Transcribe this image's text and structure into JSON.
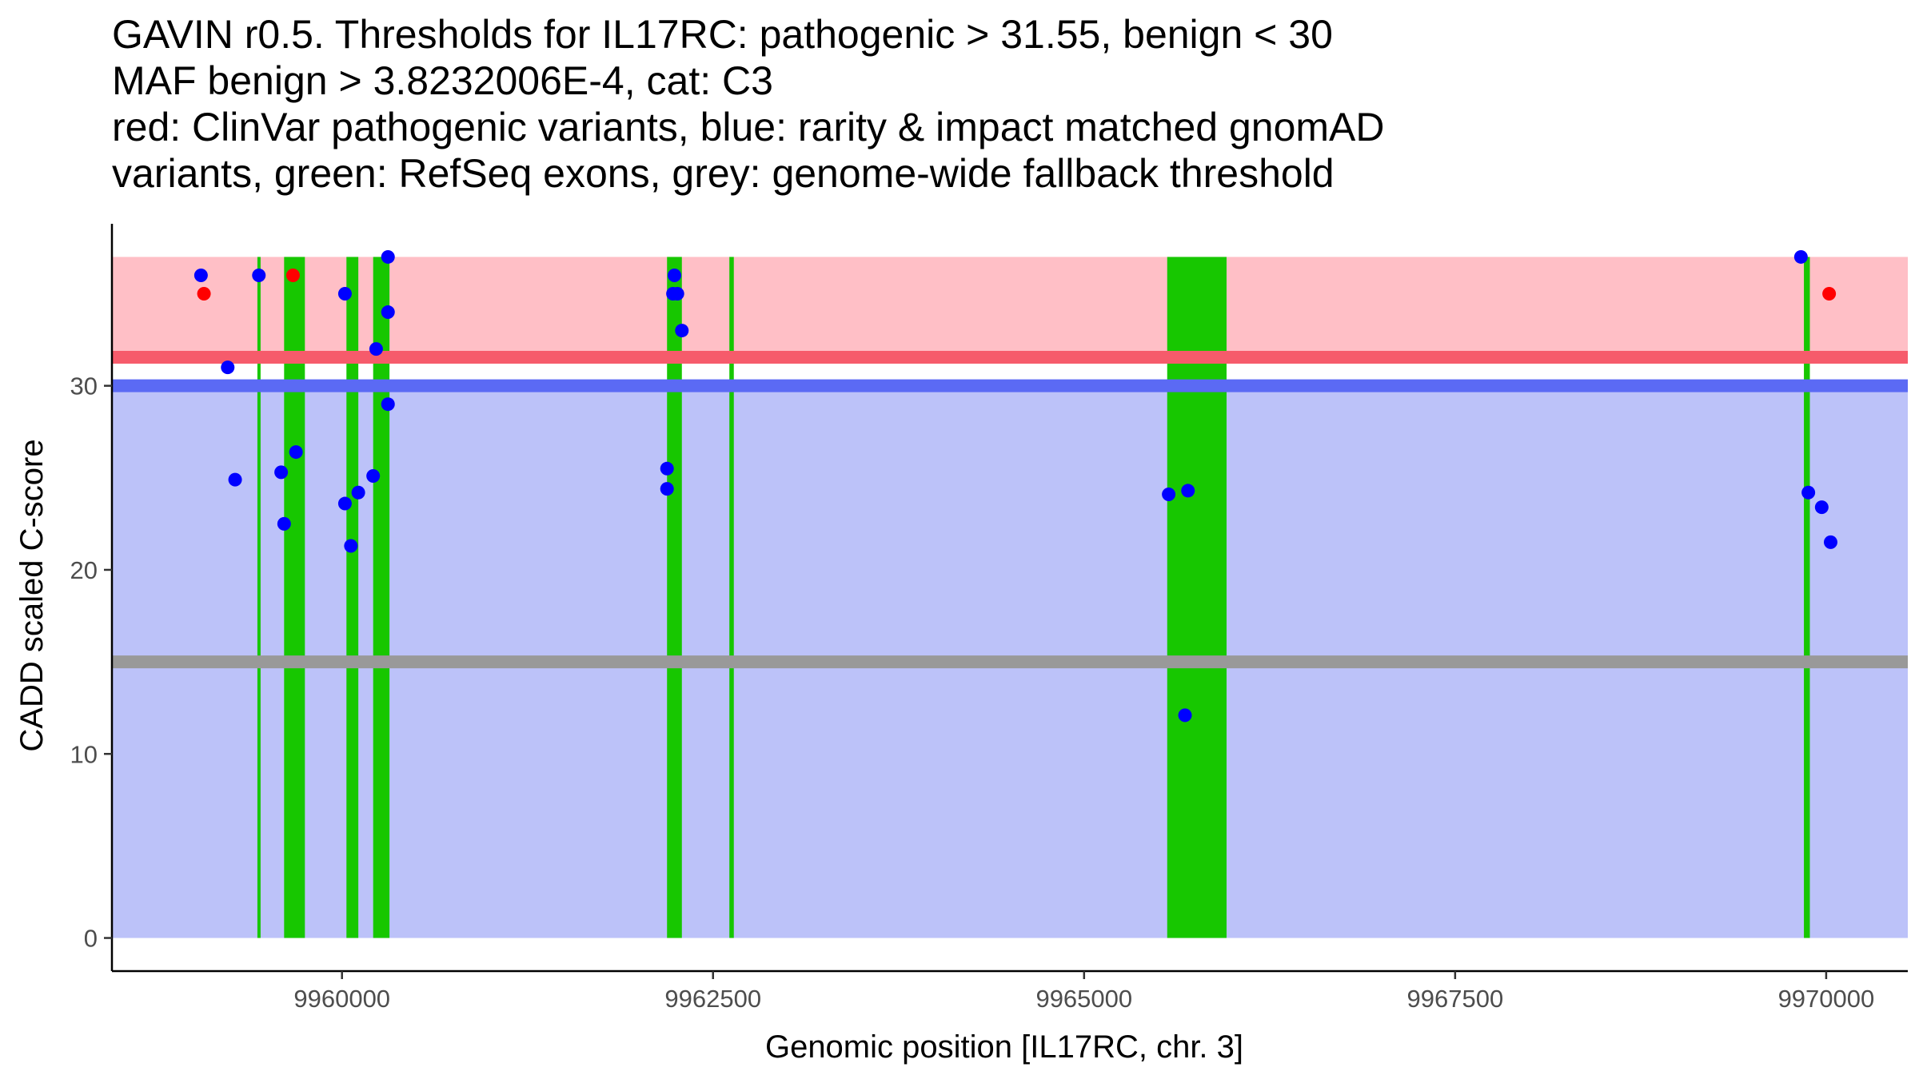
{
  "chart_data": {
    "type": "scatter",
    "title_lines": [
      "GAVIN r0.5. Thresholds for IL17RC: pathogenic > 31.55, benign < 30",
      "MAF benign > 3.8232006E-4, cat: C3",
      "red: ClinVar pathogenic variants, blue: rarity & impact matched gnomAD",
      "variants, green: RefSeq exons, grey: genome-wide fallback threshold"
    ],
    "xlabel": "Genomic position [IL17RC, chr. 3]",
    "ylabel": "CADD scaled C-score",
    "xlim": [
      9958450,
      9970550
    ],
    "ylim": [
      -1.8,
      38.8
    ],
    "xticks": [
      9960000,
      9962500,
      9965000,
      9967500,
      9970000
    ],
    "xtick_labels": [
      "9960000",
      "9962500",
      "9965000",
      "9967500",
      "9970000"
    ],
    "yticks": [
      0,
      10,
      20,
      30
    ],
    "ytick_labels": [
      "0",
      "10",
      "20",
      "30"
    ],
    "grid": false,
    "data_xrange": [
      9958450,
      9970550
    ],
    "regions": {
      "pathogenic_band": {
        "y": [
          31.55,
          37
        ],
        "color": "#ffbfc6"
      },
      "benign_band": {
        "y": [
          0,
          30
        ],
        "color": "#bcc2f9"
      },
      "pathogenic_threshold": {
        "y": 31.55,
        "color": "#f65b6b"
      },
      "benign_threshold": {
        "y": 30,
        "color": "#5b6af4"
      },
      "fallback_threshold": {
        "y": 15,
        "color": "#999999"
      }
    },
    "exons": [
      {
        "start": 9959430,
        "end": 9959450
      },
      {
        "start": 9959610,
        "end": 9959750
      },
      {
        "start": 9960030,
        "end": 9960110
      },
      {
        "start": 9960210,
        "end": 9960320
      },
      {
        "start": 9962190,
        "end": 9962290
      },
      {
        "start": 9962610,
        "end": 9962640
      },
      {
        "start": 9965560,
        "end": 9965960
      },
      {
        "start": 9969850,
        "end": 9969890
      }
    ],
    "exon_color": "#17c700",
    "series": [
      {
        "name": "ClinVar pathogenic variants",
        "color": "#ff0000",
        "points": [
          {
            "x": 9959070,
            "y": 35
          },
          {
            "x": 9959670,
            "y": 36
          },
          {
            "x": 9970020,
            "y": 35
          }
        ]
      },
      {
        "name": "rarity & impact matched gnomAD variants",
        "color": "#0000ff",
        "points": [
          {
            "x": 9959050,
            "y": 36
          },
          {
            "x": 9959230,
            "y": 31
          },
          {
            "x": 9959280,
            "y": 24.9
          },
          {
            "x": 9959440,
            "y": 36
          },
          {
            "x": 9959590,
            "y": 25.3
          },
          {
            "x": 9959610,
            "y": 22.5
          },
          {
            "x": 9959690,
            "y": 26.4
          },
          {
            "x": 9960020,
            "y": 23.6
          },
          {
            "x": 9960020,
            "y": 35
          },
          {
            "x": 9960060,
            "y": 21.3
          },
          {
            "x": 9960110,
            "y": 24.2
          },
          {
            "x": 9960210,
            "y": 25.1
          },
          {
            "x": 9960230,
            "y": 32
          },
          {
            "x": 9960310,
            "y": 37
          },
          {
            "x": 9960310,
            "y": 34
          },
          {
            "x": 9960310,
            "y": 29
          },
          {
            "x": 9962190,
            "y": 25.5
          },
          {
            "x": 9962190,
            "y": 24.4
          },
          {
            "x": 9962230,
            "y": 35
          },
          {
            "x": 9962240,
            "y": 36
          },
          {
            "x": 9962260,
            "y": 35
          },
          {
            "x": 9962290,
            "y": 33
          },
          {
            "x": 9965570,
            "y": 24.1
          },
          {
            "x": 9965680,
            "y": 12.1
          },
          {
            "x": 9965700,
            "y": 24.3
          },
          {
            "x": 9969830,
            "y": 37
          },
          {
            "x": 9969880,
            "y": 24.2
          },
          {
            "x": 9969970,
            "y": 23.4
          },
          {
            "x": 9970030,
            "y": 21.5
          }
        ]
      }
    ]
  }
}
